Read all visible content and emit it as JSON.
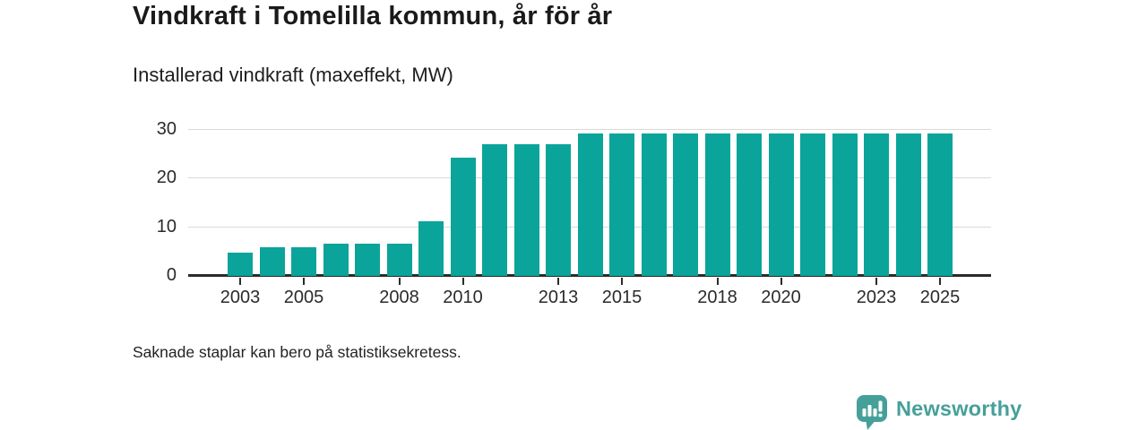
{
  "header": {
    "title": "Vindkraft i Tomelilla kommun, år för år",
    "subtitle": "Installerad vindkraft (maxeffekt, MW)"
  },
  "chart_data": {
    "type": "bar",
    "title": "Vindkraft i Tomelilla kommun, år för år",
    "ylabel": "Installerad vindkraft (maxeffekt, MW)",
    "categories": [
      2003,
      2004,
      2005,
      2006,
      2007,
      2008,
      2009,
      2010,
      2011,
      2012,
      2013,
      2014,
      2015,
      2016,
      2017,
      2018,
      2019,
      2020,
      2021,
      2022,
      2023,
      2024,
      2025
    ],
    "values": [
      4.7,
      5.8,
      5.8,
      6.6,
      6.6,
      6.6,
      11.2,
      24.2,
      27,
      27,
      27,
      29.3,
      29.3,
      29.3,
      29.3,
      29.3,
      29.3,
      29.3,
      29.3,
      29.3,
      29.3,
      29.3,
      29.3
    ],
    "ylim": [
      0,
      30
    ],
    "yticks": [
      0,
      10,
      20,
      30
    ],
    "xtick_labels": [
      "2003",
      "2005",
      "2008",
      "2010",
      "2013",
      "2015",
      "2018",
      "2020",
      "2023",
      "2025"
    ],
    "grid": "horizontal",
    "legend": "none",
    "bar_color": "#0aa49a",
    "gridline_color": "#d9d9d9",
    "axis_color": "#2b2b2b"
  },
  "footer": {
    "note": "Saknade staplar kan bero på statistiksekretess.",
    "brand": "Newsworthy",
    "brand_color": "#46a09a"
  }
}
